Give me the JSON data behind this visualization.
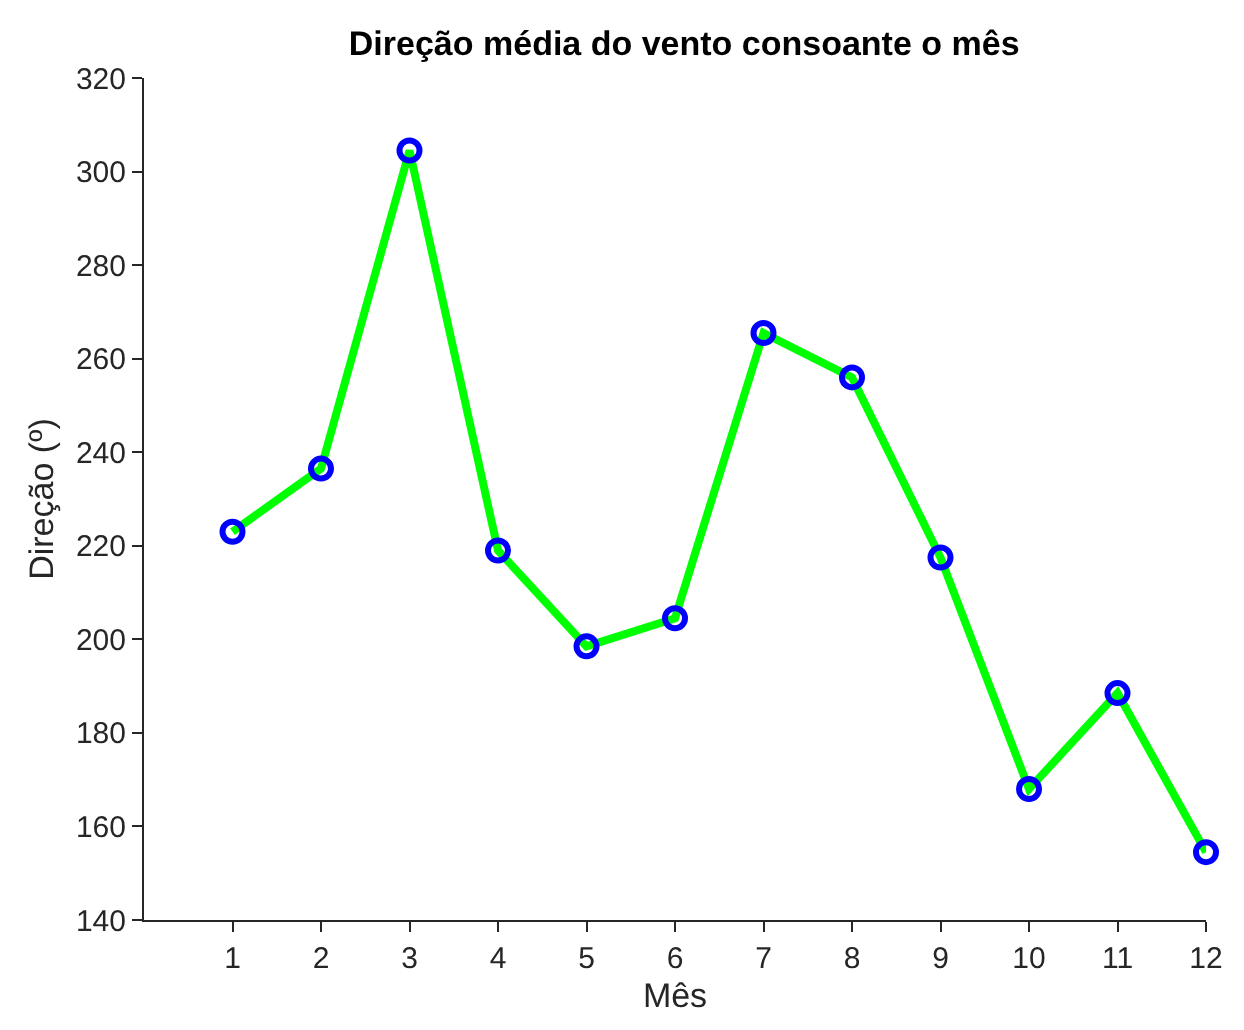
{
  "chart_data": {
    "type": "line",
    "title": "Direção média do vento consoante o mês",
    "xlabel": "Mês",
    "ylabel": "Direção (º)",
    "x": [
      1,
      2,
      3,
      4,
      5,
      6,
      7,
      8,
      9,
      10,
      11,
      12
    ],
    "series": [
      {
        "color": "#00ff00",
        "values": [
          223,
          236.5,
          304.5,
          219,
          198.5,
          204.5,
          265.5,
          256,
          217.5,
          168,
          188.5,
          154.5
        ]
      }
    ],
    "xlim": [
      0,
      12
    ],
    "xticks": [
      1,
      2,
      3,
      4,
      5,
      6,
      7,
      8,
      9,
      10,
      11,
      12
    ],
    "ylim": [
      140,
      320
    ],
    "yticks": [
      140,
      160,
      180,
      200,
      220,
      240,
      260,
      280,
      300,
      320
    ],
    "marker": "circle",
    "line_style": "solid"
  }
}
